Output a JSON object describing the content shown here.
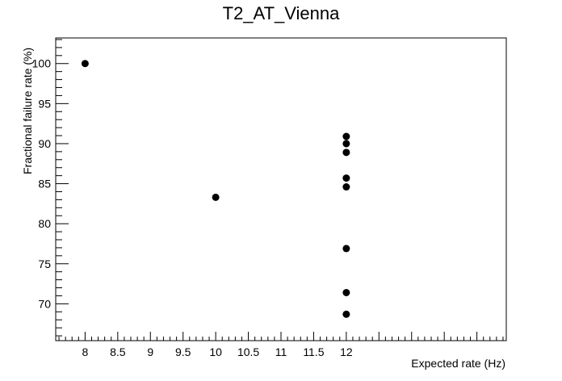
{
  "chart_data": {
    "type": "scatter",
    "title": "T2_AT_Vienna",
    "xlabel": "Expected rate (Hz)",
    "ylabel": "Fractional failure rate (%)",
    "xlim": [
      7.55,
      14.45
    ],
    "ylim": [
      65.4,
      103.2
    ],
    "x_ticks": [
      8,
      8.5,
      9,
      9.5,
      10,
      10.5,
      11,
      11.5,
      12
    ],
    "x_tick_labels": [
      "8",
      "8.5",
      "9",
      "9.5",
      "10",
      "10.5",
      "11",
      "11.5",
      "12"
    ],
    "y_ticks": [
      70,
      75,
      80,
      85,
      90,
      95,
      100
    ],
    "y_tick_labels": [
      "70",
      "75",
      "80",
      "85",
      "90",
      "95",
      "100"
    ],
    "grid": false,
    "marker_color": "#000000",
    "points": [
      {
        "x": 8,
        "y": 100.0
      },
      {
        "x": 10,
        "y": 83.3
      },
      {
        "x": 12,
        "y": 90.9
      },
      {
        "x": 12,
        "y": 90.0
      },
      {
        "x": 12,
        "y": 88.9
      },
      {
        "x": 12,
        "y": 85.7
      },
      {
        "x": 12,
        "y": 84.6
      },
      {
        "x": 12,
        "y": 76.9
      },
      {
        "x": 12,
        "y": 71.4
      },
      {
        "x": 12,
        "y": 68.7
      }
    ]
  }
}
